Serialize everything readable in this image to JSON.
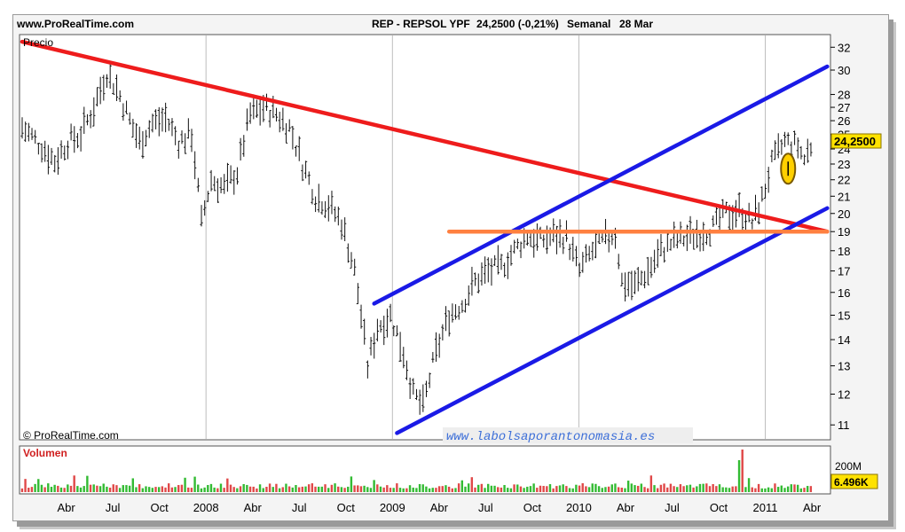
{
  "header": {
    "site": "www.ProRealTime.com",
    "instrument": "REP - REPSOL YPF",
    "quote": "24,2500 (-0,21%)",
    "period": "Semanal",
    "date": "28 Mar"
  },
  "chart_data": {
    "type": "ohlc",
    "title": "REP - REPSOL YPF",
    "panel_label": "Precio",
    "volume_label": "Volumen",
    "copyright": "© ProRealTime.com",
    "watermark": "www.labolsaporantonomasia.es",
    "last_price_label": "24,2500",
    "volume_scale_label": "200M",
    "last_volume_label": "6.496K",
    "y_ticks": [
      32,
      30,
      28,
      27,
      26,
      25,
      24,
      23,
      22,
      21,
      20,
      19,
      18,
      17,
      16,
      15,
      14,
      13,
      12,
      11
    ],
    "y_scale": "log",
    "ylim": [
      10.6,
      33
    ],
    "x_ticks": [
      "Abr",
      "Jul",
      "Oct",
      "2008",
      "Abr",
      "Jul",
      "Oct",
      "2009",
      "Abr",
      "Jul",
      "Oct",
      "2010",
      "Abr",
      "Jul",
      "Oct",
      "2011",
      "Abr"
    ],
    "price_path": [
      [
        0,
        25.5
      ],
      [
        6,
        24.2
      ],
      [
        10,
        23.2
      ],
      [
        14,
        24.5
      ],
      [
        18,
        25.0
      ],
      [
        22,
        27.0
      ],
      [
        26,
        29.8
      ],
      [
        29,
        28.5
      ],
      [
        33,
        26.0
      ],
      [
        36,
        24.5
      ],
      [
        40,
        25.8
      ],
      [
        44,
        26.2
      ],
      [
        48,
        24.5
      ],
      [
        52,
        25.0
      ],
      [
        55,
        19.5
      ],
      [
        58,
        22.0
      ],
      [
        62,
        21.5
      ],
      [
        66,
        22.5
      ],
      [
        70,
        26.5
      ],
      [
        74,
        27.0
      ],
      [
        78,
        26.5
      ],
      [
        82,
        25.5
      ],
      [
        86,
        23.0
      ],
      [
        90,
        21.0
      ],
      [
        94,
        20.5
      ],
      [
        98,
        19.5
      ],
      [
        102,
        17.0
      ],
      [
        106,
        13.0
      ],
      [
        109,
        14.5
      ],
      [
        113,
        15.0
      ],
      [
        117,
        13.5
      ],
      [
        120,
        12.0
      ],
      [
        123,
        11.6
      ],
      [
        127,
        13.5
      ],
      [
        131,
        15.0
      ],
      [
        135,
        15.5
      ],
      [
        139,
        16.5
      ],
      [
        143,
        17.0
      ],
      [
        147,
        17.2
      ],
      [
        151,
        18.0
      ],
      [
        155,
        18.8
      ],
      [
        159,
        18.5
      ],
      [
        163,
        18.8
      ],
      [
        167,
        18.7
      ],
      [
        171,
        17.0
      ],
      [
        175,
        18.0
      ],
      [
        179,
        18.6
      ],
      [
        182,
        18.9
      ],
      [
        184,
        16.5
      ],
      [
        188,
        16.3
      ],
      [
        192,
        17.0
      ],
      [
        196,
        18.0
      ],
      [
        200,
        18.5
      ],
      [
        204,
        18.7
      ],
      [
        208,
        19.0
      ],
      [
        212,
        19.2
      ],
      [
        216,
        20.0
      ],
      [
        220,
        20.2
      ],
      [
        224,
        19.5
      ],
      [
        227,
        20.8
      ],
      [
        230,
        23.0
      ],
      [
        234,
        24.5
      ],
      [
        238,
        24.2
      ],
      [
        240,
        23.3
      ],
      [
        242,
        24.25
      ]
    ],
    "volume_spike_weeks": [
      220,
      221
    ],
    "trendlines": [
      {
        "name": "bajista",
        "color": "#ee1c1c",
        "from": [
          0,
          32.5
        ],
        "to": [
          247,
          19.0
        ]
      },
      {
        "name": "canal-superior",
        "color": "#1a1ae6",
        "from": [
          108,
          15.5
        ],
        "to": [
          247,
          30.3
        ]
      },
      {
        "name": "canal-inferior",
        "color": "#1a1ae6",
        "from": [
          115,
          10.75
        ],
        "to": [
          247,
          20.3
        ]
      },
      {
        "name": "resistencia",
        "color": "#ff8040",
        "from": [
          131,
          19.0
        ],
        "to": [
          247,
          19.0
        ]
      }
    ],
    "highlight": {
      "week": 235,
      "price": 22.7,
      "color": "#ffd000"
    }
  }
}
